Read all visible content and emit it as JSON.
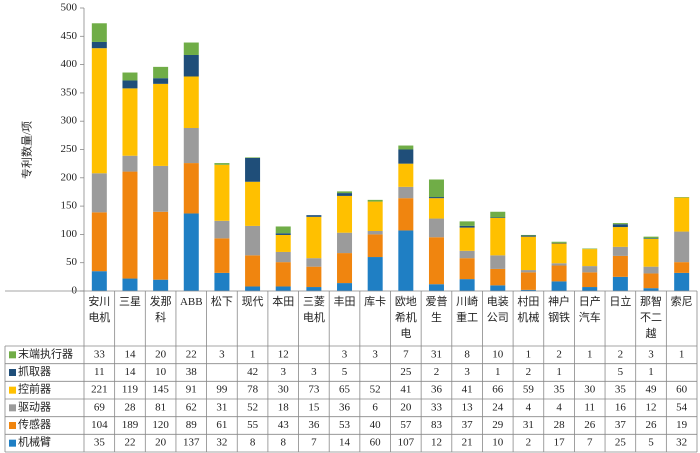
{
  "chart_data": {
    "type": "stacked_bar",
    "y_label": "专利数量/项",
    "categories": [
      "安川电机",
      "三星",
      "发那科",
      "ABB",
      "松下",
      "现代",
      "本田",
      "三菱电机",
      "丰田",
      "库卡",
      "欧地希机电",
      "爱普生",
      "川崎重工",
      "电装公司",
      "村田机械",
      "神户钢铁",
      "日产汽车",
      "日立",
      "那智不二越",
      "索尼"
    ],
    "series": [
      {
        "name": "机械臂",
        "color": "#1f7fc4",
        "values": [
          35,
          22,
          20,
          137,
          32,
          8,
          8,
          7,
          14,
          60,
          107,
          12,
          21,
          10,
          2,
          17,
          7,
          25,
          5,
          32
        ]
      },
      {
        "name": "传感器",
        "color": "#f0850f",
        "values": [
          104,
          189,
          120,
          89,
          61,
          55,
          43,
          36,
          53,
          40,
          57,
          83,
          37,
          29,
          31,
          28,
          26,
          37,
          26,
          19
        ]
      },
      {
        "name": "驱动器",
        "color": "#9b9b9b",
        "values": [
          69,
          28,
          81,
          62,
          31,
          52,
          18,
          15,
          36,
          6,
          20,
          33,
          13,
          24,
          4,
          4,
          11,
          16,
          12,
          54
        ]
      },
      {
        "name": "控前器",
        "color": "#ffc000",
        "values": [
          221,
          119,
          145,
          91,
          99,
          78,
          30,
          73,
          65,
          52,
          41,
          36,
          41,
          66,
          59,
          35,
          30,
          35,
          49,
          60
        ]
      },
      {
        "name": "抓取器",
        "color": "#1f4e79",
        "values": [
          11,
          14,
          10,
          38,
          null,
          42,
          3,
          3,
          5,
          null,
          25,
          2,
          3,
          1,
          2,
          1,
          null,
          5,
          1,
          null
        ]
      },
      {
        "name": "末端执行器",
        "color": "#70ad47",
        "values": [
          33,
          14,
          20,
          22,
          3,
          1,
          12,
          null,
          3,
          3,
          7,
          31,
          8,
          10,
          1,
          2,
          1,
          2,
          3,
          1
        ]
      }
    ],
    "ylim": [
      0,
      500
    ],
    "yticks": [
      0,
      50,
      100,
      150,
      200,
      250,
      300,
      350,
      400,
      450,
      500
    ]
  }
}
